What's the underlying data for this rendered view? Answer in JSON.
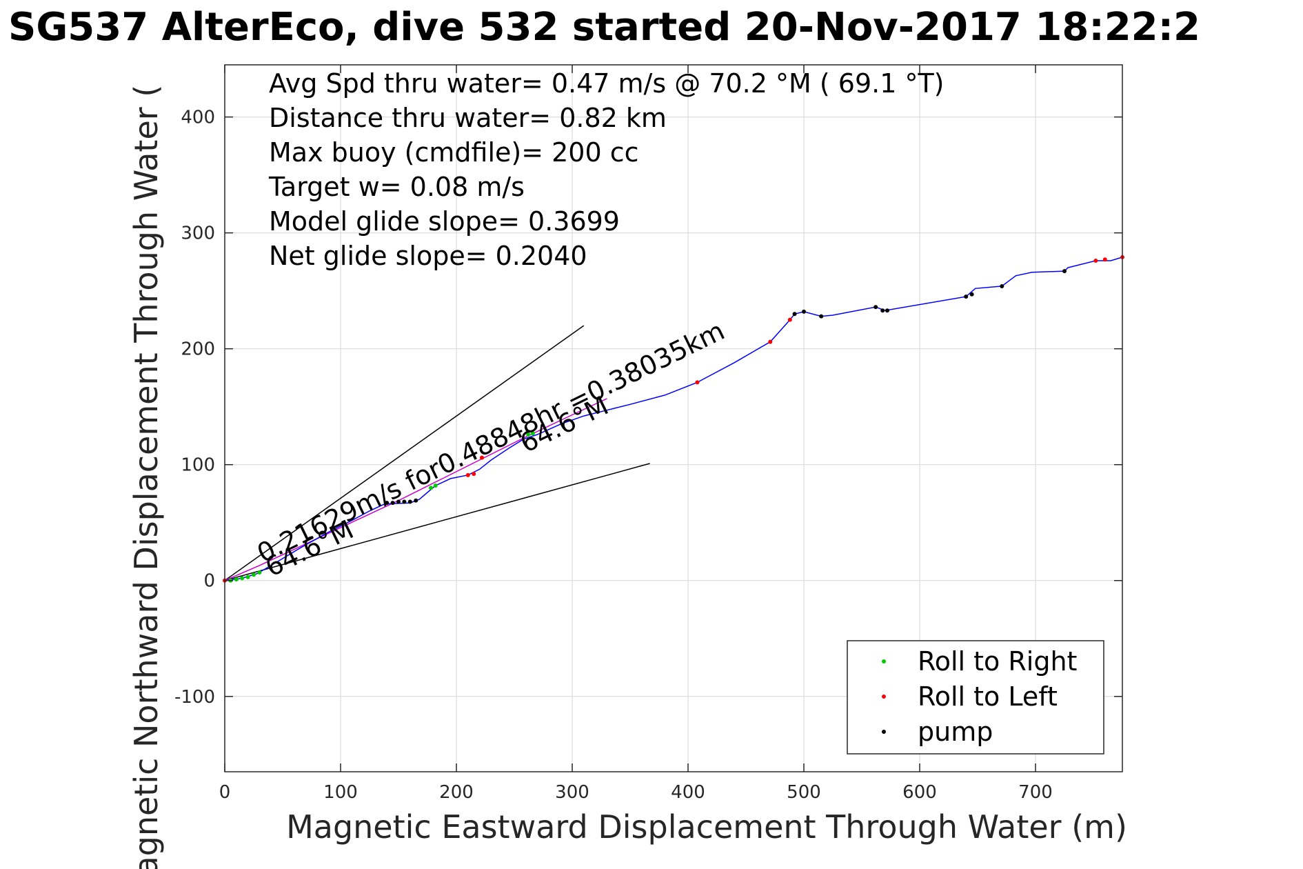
{
  "chart_data": {
    "type": "line",
    "title": "SG537 AlterEco, dive 532 started 20-Nov-2017 18:22:2",
    "xlabel": "Magnetic Eastward Displacement Through Water (m)",
    "ylabel": "Magnetic Northward Displacement Through Water (",
    "xlim": [
      0,
      775
    ],
    "ylim": [
      -165,
      445
    ],
    "xticks": [
      0,
      100,
      200,
      300,
      400,
      500,
      600,
      700
    ],
    "yticks": [
      -100,
      0,
      100,
      200,
      300,
      400
    ],
    "grid": true,
    "legend_position": "bottom-right",
    "info_lines": [
      "Avg Spd thru water=  0.47 m/s @  70.2 °M ( 69.1 °T)",
      "Distance thru water=  0.82 km",
      "Max buoy (cmdfile)= 200 cc",
      "Target w= 0.08 m/s",
      "Model glide slope= 0.3699",
      "Net glide slope= 0.2040"
    ],
    "track": {
      "color": "#0000ff",
      "points": [
        [
          0,
          0
        ],
        [
          15,
          2
        ],
        [
          28,
          6
        ],
        [
          45,
          16
        ],
        [
          65,
          28
        ],
        [
          90,
          42
        ],
        [
          110,
          52
        ],
        [
          125,
          60
        ],
        [
          138,
          66
        ],
        [
          160,
          67
        ],
        [
          168,
          70
        ],
        [
          175,
          76
        ],
        [
          182,
          82
        ],
        [
          195,
          88
        ],
        [
          210,
          91
        ],
        [
          220,
          96
        ],
        [
          230,
          104
        ],
        [
          245,
          114
        ],
        [
          258,
          122
        ],
        [
          270,
          126
        ],
        [
          290,
          135
        ],
        [
          310,
          142
        ],
        [
          330,
          147
        ],
        [
          350,
          152
        ],
        [
          380,
          160
        ],
        [
          408,
          171
        ],
        [
          440,
          188
        ],
        [
          471,
          206
        ],
        [
          488,
          225
        ],
        [
          492,
          230
        ],
        [
          500,
          232
        ],
        [
          515,
          228
        ],
        [
          525,
          229
        ],
        [
          562,
          236
        ],
        [
          570,
          233
        ],
        [
          640,
          245
        ],
        [
          648,
          252
        ],
        [
          671,
          254
        ],
        [
          683,
          263
        ],
        [
          697,
          266
        ],
        [
          725,
          267
        ],
        [
          728,
          270
        ],
        [
          752,
          276
        ],
        [
          765,
          276
        ],
        [
          775,
          279
        ]
      ]
    },
    "magenta_line": {
      "color": "#cc00cc",
      "points": [
        [
          0,
          0
        ],
        [
          30,
          13
        ],
        [
          60,
          27
        ],
        [
          90,
          41
        ],
        [
          120,
          55
        ],
        [
          150,
          69
        ],
        [
          180,
          84
        ],
        [
          220,
          104
        ],
        [
          260,
          124
        ],
        [
          300,
          143
        ],
        [
          330,
          157
        ]
      ]
    },
    "reference_lines": [
      {
        "color": "#000000",
        "points": [
          [
            0,
            0
          ],
          [
            310,
            220
          ]
        ]
      },
      {
        "color": "#000000",
        "points": [
          [
            0,
            0
          ],
          [
            367,
            101
          ]
        ]
      }
    ],
    "series": [
      {
        "name": "Roll to Right",
        "color": "#00cc00",
        "points": [
          [
            5,
            0
          ],
          [
            10,
            1
          ],
          [
            15,
            2
          ],
          [
            20,
            3
          ],
          [
            25,
            5
          ],
          [
            30,
            7
          ],
          [
            178,
            80
          ],
          [
            182,
            82
          ],
          [
            262,
            126
          ],
          [
            266,
            127
          ]
        ]
      },
      {
        "name": "Roll to Left",
        "color": "#ff0000",
        "points": [
          [
            0,
            0
          ],
          [
            210,
            91
          ],
          [
            215,
            92
          ],
          [
            222,
            106
          ],
          [
            408,
            171
          ],
          [
            471,
            206
          ],
          [
            488,
            225
          ],
          [
            752,
            276
          ],
          [
            760,
            277
          ],
          [
            775,
            279
          ]
        ]
      },
      {
        "name": "pump",
        "color": "#000000",
        "points": [
          [
            140,
            67
          ],
          [
            145,
            67
          ],
          [
            150,
            68
          ],
          [
            155,
            68
          ],
          [
            160,
            68
          ],
          [
            165,
            69
          ],
          [
            492,
            230
          ],
          [
            500,
            232
          ],
          [
            515,
            228
          ],
          [
            562,
            236
          ],
          [
            568,
            233
          ],
          [
            572,
            233
          ],
          [
            640,
            245
          ],
          [
            645,
            247
          ],
          [
            671,
            254
          ],
          [
            725,
            267
          ]
        ]
      }
    ],
    "annotations": [
      {
        "text": "0.21629m/s for0.48848hr =0.38035km",
        "x": 33,
        "y": 15,
        "angle_deg": -26
      },
      {
        "text": "64.6°M",
        "x": 40,
        "y": 3,
        "angle_deg": -26
      },
      {
        "text": "64.6°M",
        "x": 260,
        "y": 110,
        "angle_deg": -26
      }
    ]
  }
}
